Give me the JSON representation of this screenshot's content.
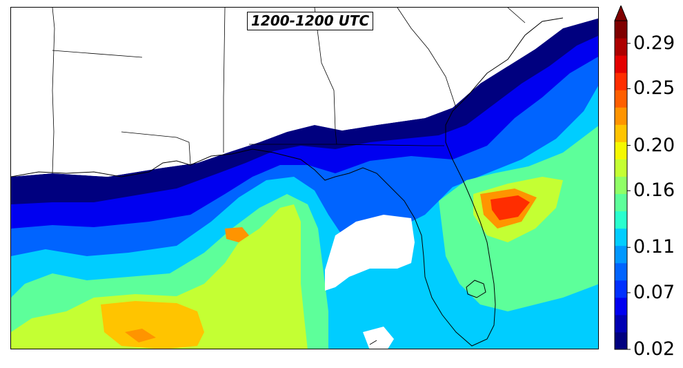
{
  "title": "1200-1200 UTC",
  "colorbar": {
    "tick_labels": [
      "0.02",
      "0.07",
      "0.11",
      "0.16",
      "0.20",
      "0.25",
      "0.29"
    ],
    "vmin": 0.02,
    "vmax": 0.31,
    "extend": "max",
    "colors": [
      "#00007f",
      "#0000b3",
      "#0000f0",
      "#0030ff",
      "#0064ff",
      "#0098ff",
      "#00cdff",
      "#29ffce",
      "#5dff9a",
      "#90ff66",
      "#c4ff33",
      "#f5f900",
      "#ffc400",
      "#ff9400",
      "#ff5f00",
      "#ff2d00",
      "#e40000",
      "#ad0000",
      "#7f0000"
    ]
  }
}
